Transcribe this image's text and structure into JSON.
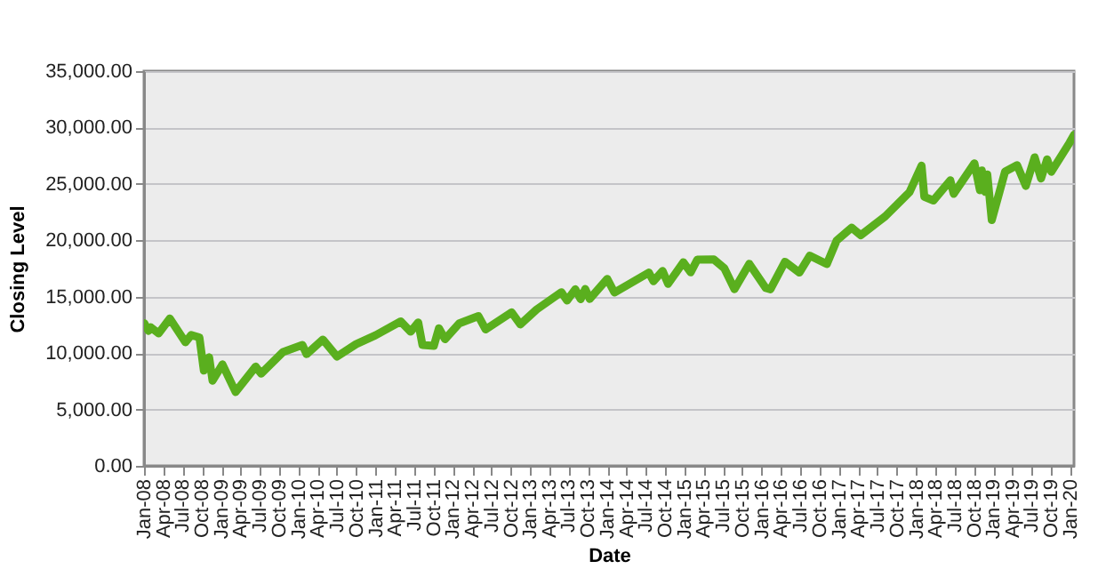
{
  "chart_data": {
    "type": "line",
    "xlabel": "Date",
    "ylabel": "Closing Level",
    "grid": "y",
    "marker": "none",
    "line_style": "solid",
    "xlim": [
      "2008-01-01",
      "2020-01-17"
    ],
    "ylim": [
      0,
      35000
    ],
    "yticks": [
      {
        "value": 0,
        "label": "0.00"
      },
      {
        "value": 5000,
        "label": "5,000.00"
      },
      {
        "value": 10000,
        "label": "10,000.00"
      },
      {
        "value": 15000,
        "label": "15,000.00"
      },
      {
        "value": 20000,
        "label": "20,000.00"
      },
      {
        "value": 25000,
        "label": "25,000.00"
      },
      {
        "value": 30000,
        "label": "30,000.00"
      },
      {
        "value": 35000,
        "label": "35,000.00"
      }
    ],
    "xticks": [
      {
        "value": "2008-01",
        "label": "Jan-08"
      },
      {
        "value": "2008-04",
        "label": "Apr-08"
      },
      {
        "value": "2008-07",
        "label": "Jul-08"
      },
      {
        "value": "2008-10",
        "label": "Oct-08"
      },
      {
        "value": "2009-01",
        "label": "Jan-09"
      },
      {
        "value": "2009-04",
        "label": "Apr-09"
      },
      {
        "value": "2009-07",
        "label": "Jul-09"
      },
      {
        "value": "2009-10",
        "label": "Oct-09"
      },
      {
        "value": "2010-01",
        "label": "Jan-10"
      },
      {
        "value": "2010-04",
        "label": "Apr-10"
      },
      {
        "value": "2010-07",
        "label": "Jul-10"
      },
      {
        "value": "2010-10",
        "label": "Oct-10"
      },
      {
        "value": "2011-01",
        "label": "Jan-11"
      },
      {
        "value": "2011-04",
        "label": "Apr-11"
      },
      {
        "value": "2011-07",
        "label": "Jul-11"
      },
      {
        "value": "2011-10",
        "label": "Oct-11"
      },
      {
        "value": "2012-01",
        "label": "Jan-12"
      },
      {
        "value": "2012-04",
        "label": "Apr-12"
      },
      {
        "value": "2012-07",
        "label": "Jul-12"
      },
      {
        "value": "2012-10",
        "label": "Oct-12"
      },
      {
        "value": "2013-01",
        "label": "Jan-13"
      },
      {
        "value": "2013-04",
        "label": "Apr-13"
      },
      {
        "value": "2013-07",
        "label": "Jul-13"
      },
      {
        "value": "2013-10",
        "label": "Oct-13"
      },
      {
        "value": "2014-01",
        "label": "Jan-14"
      },
      {
        "value": "2014-04",
        "label": "Apr-14"
      },
      {
        "value": "2014-07",
        "label": "Jul-14"
      },
      {
        "value": "2014-10",
        "label": "Oct-14"
      },
      {
        "value": "2015-01",
        "label": "Jan-15"
      },
      {
        "value": "2015-04",
        "label": "Apr-15"
      },
      {
        "value": "2015-07",
        "label": "Jul-15"
      },
      {
        "value": "2015-10",
        "label": "Oct-15"
      },
      {
        "value": "2016-01",
        "label": "Jan-16"
      },
      {
        "value": "2016-04",
        "label": "Apr-16"
      },
      {
        "value": "2016-07",
        "label": "Jul-16"
      },
      {
        "value": "2016-10",
        "label": "Oct-16"
      },
      {
        "value": "2017-01",
        "label": "Jan-17"
      },
      {
        "value": "2017-04",
        "label": "Apr-17"
      },
      {
        "value": "2017-07",
        "label": "Jul-17"
      },
      {
        "value": "2017-10",
        "label": "Oct-17"
      },
      {
        "value": "2018-01",
        "label": "Jan-18"
      },
      {
        "value": "2018-04",
        "label": "Apr-18"
      },
      {
        "value": "2018-07",
        "label": "Jul-18"
      },
      {
        "value": "2018-10",
        "label": "Oct-18"
      },
      {
        "value": "2019-01",
        "label": "Jan-19"
      },
      {
        "value": "2019-04",
        "label": "Apr-19"
      },
      {
        "value": "2019-07",
        "label": "Jul-19"
      },
      {
        "value": "2019-10",
        "label": "Oct-19"
      },
      {
        "value": "2020-01",
        "label": "Jan-20"
      }
    ],
    "x": [
      "2008-01-02",
      "2008-01-22",
      "2008-02-01",
      "2008-03-10",
      "2008-05-02",
      "2008-07-15",
      "2008-08-11",
      "2008-09-19",
      "2008-10-10",
      "2008-11-04",
      "2008-11-20",
      "2009-01-06",
      "2009-03-09",
      "2009-06-12",
      "2009-07-08",
      "2009-10-19",
      "2010-01-19",
      "2010-02-08",
      "2010-04-26",
      "2010-07-02",
      "2010-09-30",
      "2010-12-31",
      "2011-04-29",
      "2011-06-15",
      "2011-07-21",
      "2011-08-10",
      "2011-10-03",
      "2011-10-27",
      "2011-11-25",
      "2012-01-31",
      "2012-05-01",
      "2012-06-04",
      "2012-10-05",
      "2012-11-15",
      "2013-01-31",
      "2013-05-28",
      "2013-06-24",
      "2013-08-02",
      "2013-08-27",
      "2013-09-18",
      "2013-10-09",
      "2013-12-31",
      "2014-02-03",
      "2014-07-16",
      "2014-08-07",
      "2014-09-19",
      "2014-10-15",
      "2014-12-26",
      "2015-01-30",
      "2015-03-02",
      "2015-05-19",
      "2015-07-08",
      "2015-08-25",
      "2015-11-03",
      "2016-01-20",
      "2016-02-11",
      "2016-04-20",
      "2016-06-27",
      "2016-08-15",
      "2016-11-04",
      "2016-12-20",
      "2017-03-01",
      "2017-04-13",
      "2017-08-07",
      "2017-11-30",
      "2018-01-26",
      "2018-02-08",
      "2018-03-23",
      "2018-06-11",
      "2018-06-27",
      "2018-10-03",
      "2018-10-29",
      "2018-11-07",
      "2018-11-23",
      "2018-12-03",
      "2018-12-24",
      "2019-02-25",
      "2019-04-23",
      "2019-06-03",
      "2019-07-15",
      "2019-08-14",
      "2019-09-12",
      "2019-10-02",
      "2019-12-27",
      "2020-01-17"
    ],
    "series": [
      {
        "color": "#5aaf1e",
        "values": [
          12650,
          11970,
          12300,
          11740,
          13060,
          10960,
          11600,
          11390,
          8450,
          9630,
          7550,
          9000,
          6550,
          8800,
          8180,
          10090,
          10720,
          9910,
          11200,
          9690,
          10790,
          11580,
          12810,
          11900,
          12720,
          10720,
          10650,
          12200,
          11230,
          12630,
          13280,
          12100,
          13610,
          12540,
          13860,
          15400,
          14660,
          15660,
          14780,
          15680,
          14800,
          16580,
          15370,
          17140,
          16370,
          17280,
          16140,
          18050,
          17160,
          18290,
          18310,
          17520,
          15670,
          17920,
          15770,
          15660,
          18100,
          17140,
          18640,
          17890,
          19970,
          21120,
          20450,
          22120,
          24270,
          26620,
          23860,
          23530,
          25320,
          24120,
          26830,
          24440,
          26190,
          24290,
          25830,
          21790,
          26090,
          26660,
          24820,
          27360,
          25480,
          27180,
          26080,
          28650,
          29350
        ]
      }
    ]
  }
}
